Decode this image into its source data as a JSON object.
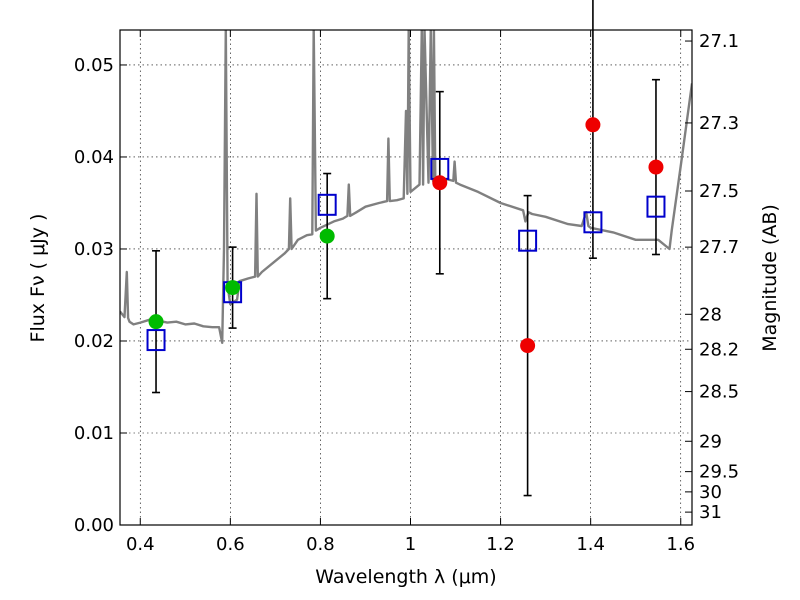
{
  "chart_data": {
    "type": "scatter",
    "xlabel": "Wavelength  λ (μm)",
    "ylabel": "Flux  Fν  ( μJy )",
    "y2label": "Magnitude (AB)",
    "xlim": [
      0.355,
      1.625
    ],
    "ylim": [
      0.0,
      0.0538
    ],
    "grid": true,
    "x_ticks": [
      0.4,
      0.6,
      0.8,
      1.0,
      1.2,
      1.4,
      1.6
    ],
    "x_tick_labels": [
      "0.4",
      "0.6",
      "0.8",
      "1",
      "1.2",
      "1.4",
      "1.6"
    ],
    "y_ticks": [
      0.0,
      0.01,
      0.02,
      0.03,
      0.04,
      0.05
    ],
    "y_tick_labels": [
      "0.00",
      "0.01",
      "0.02",
      "0.03",
      "0.04",
      "0.05"
    ],
    "y2_ticks": [
      {
        "label": "27.1",
        "flux": 0.0526
      },
      {
        "label": "27.3",
        "flux": 0.0437
      },
      {
        "label": "27.5",
        "flux": 0.0363
      },
      {
        "label": "27.7",
        "flux": 0.0302
      },
      {
        "label": "28",
        "flux": 0.0229
      },
      {
        "label": "28.2",
        "flux": 0.0191
      },
      {
        "label": "28.5",
        "flux": 0.0145
      },
      {
        "label": "29",
        "flux": 0.0091
      },
      {
        "label": "29.5",
        "flux": 0.0058
      },
      {
        "label": "30",
        "flux": 0.0036
      },
      {
        "label": "31",
        "flux": 0.0014
      }
    ],
    "colors": {
      "model": "#808080",
      "green_points": "#00bb00",
      "red_points": "#ee0000",
      "model_boxes": "#0000cc",
      "errorbars": "#000000"
    },
    "series": [
      {
        "name": "observed (green)",
        "marker": "circle",
        "points": [
          {
            "x": 0.435,
            "y": 0.0221,
            "err": 0.0077
          },
          {
            "x": 0.605,
            "y": 0.0258,
            "err": 0.0044
          },
          {
            "x": 0.815,
            "y": 0.0314,
            "err": 0.0068
          }
        ]
      },
      {
        "name": "observed (red)",
        "marker": "circle",
        "points": [
          {
            "x": 1.065,
            "y": 0.0372,
            "err": 0.0099
          },
          {
            "x": 1.26,
            "y": 0.0195,
            "err": 0.0163
          },
          {
            "x": 1.405,
            "y": 0.0435,
            "err": 0.0145
          },
          {
            "x": 1.545,
            "y": 0.0389,
            "err": 0.0095
          }
        ]
      },
      {
        "name": "model photometry (boxes)",
        "marker": "square-open",
        "points": [
          {
            "x": 0.435,
            "y": 0.0201
          },
          {
            "x": 0.605,
            "y": 0.0253
          },
          {
            "x": 0.815,
            "y": 0.0348
          },
          {
            "x": 1.065,
            "y": 0.0387
          },
          {
            "x": 1.26,
            "y": 0.0309
          },
          {
            "x": 1.405,
            "y": 0.0329
          },
          {
            "x": 1.545,
            "y": 0.0346
          }
        ]
      }
    ],
    "model_spectrum": {
      "name": "model SED",
      "x": [
        0.355,
        0.365,
        0.37,
        0.373,
        0.376,
        0.385,
        0.4,
        0.42,
        0.44,
        0.46,
        0.48,
        0.5,
        0.52,
        0.54,
        0.56,
        0.575,
        0.582,
        0.586,
        0.59,
        0.594,
        0.6,
        0.615,
        0.62,
        0.64,
        0.655,
        0.658,
        0.661,
        0.67,
        0.7,
        0.72,
        0.73,
        0.733,
        0.736,
        0.75,
        0.77,
        0.782,
        0.785,
        0.79,
        0.8,
        0.83,
        0.85,
        0.86,
        0.863,
        0.866,
        0.88,
        0.9,
        0.93,
        0.948,
        0.951,
        0.954,
        0.97,
        0.985,
        0.99,
        0.993,
        0.996,
        1.0,
        1.02,
        1.025,
        1.028,
        1.031,
        1.04,
        1.045,
        1.05,
        1.052,
        1.055,
        1.06,
        1.08,
        1.095,
        1.098,
        1.101,
        1.11,
        1.15,
        1.2,
        1.25,
        1.255,
        1.262,
        1.27,
        1.3,
        1.35,
        1.38,
        1.39,
        1.395,
        1.4,
        1.45,
        1.5,
        1.55,
        1.575,
        1.58,
        1.6,
        1.625
      ],
      "y": [
        0.0232,
        0.0226,
        0.0275,
        0.0225,
        0.0221,
        0.0218,
        0.022,
        0.0223,
        0.0222,
        0.022,
        0.0221,
        0.0218,
        0.0219,
        0.0216,
        0.0215,
        0.0215,
        0.0198,
        0.03,
        0.054,
        0.026,
        0.024,
        0.0245,
        0.0265,
        0.0268,
        0.027,
        0.036,
        0.027,
        0.0275,
        0.0287,
        0.0295,
        0.03,
        0.0355,
        0.03,
        0.031,
        0.0315,
        0.0316,
        0.054,
        0.032,
        0.0323,
        0.033,
        0.0333,
        0.0336,
        0.037,
        0.0336,
        0.034,
        0.0346,
        0.035,
        0.0352,
        0.042,
        0.0352,
        0.0353,
        0.0355,
        0.045,
        0.036,
        0.054,
        0.0362,
        0.037,
        0.054,
        0.037,
        0.054,
        0.0372,
        0.054,
        0.0374,
        0.054,
        0.0374,
        0.0376,
        0.0376,
        0.0374,
        0.0395,
        0.0372,
        0.037,
        0.0362,
        0.035,
        0.0342,
        0.033,
        0.034,
        0.0338,
        0.0335,
        0.0327,
        0.0325,
        0.034,
        0.0325,
        0.0323,
        0.0318,
        0.031,
        0.031,
        0.03,
        0.032,
        0.039,
        0.048
      ]
    }
  }
}
